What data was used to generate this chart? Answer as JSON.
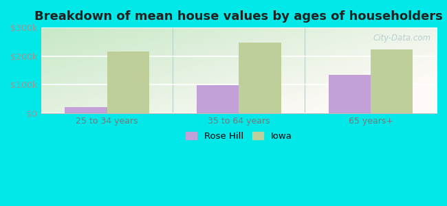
{
  "title": "Breakdown of mean house values by ages of householders",
  "categories": [
    "25 to 34 years",
    "35 to 64 years",
    "65 years+"
  ],
  "rose_hill_values": [
    20000,
    97000,
    133000
  ],
  "iowa_values": [
    215000,
    248000,
    224000
  ],
  "ylim": [
    0,
    300000
  ],
  "yticks": [
    0,
    100000,
    200000,
    300000
  ],
  "ytick_labels": [
    "$0",
    "$100k",
    "$200k",
    "$300k"
  ],
  "bar_width": 0.32,
  "rose_hill_color": "#c4a0d8",
  "iowa_color": "#bfcf9a",
  "outer_bg_color": "#00e8e8",
  "legend_rose_hill": "Rose Hill",
  "legend_iowa": "Iowa",
  "title_fontsize": 13,
  "tick_fontsize": 9,
  "legend_fontsize": 9.5,
  "watermark": "City-Data.com",
  "grid_color": "#ddeeee",
  "separator_color": "#aadddd"
}
